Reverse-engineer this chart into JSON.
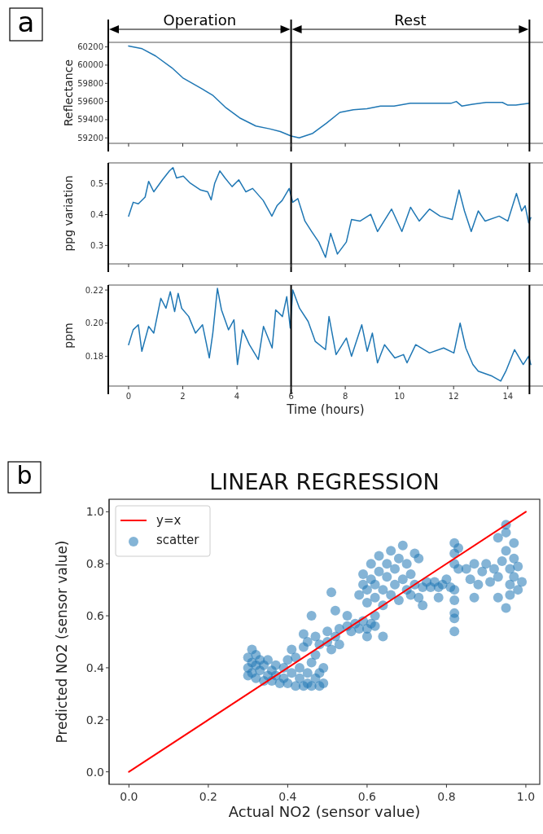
{
  "chart_data": [
    {
      "type": "line",
      "ylabel": "Reflectance",
      "annotations": [
        "a",
        "Operation",
        "Rest"
      ],
      "xlim": [
        -0.75,
        15.3
      ],
      "xticks": [
        0,
        2,
        4,
        6,
        8,
        10,
        12,
        14
      ],
      "ylim": [
        59140,
        60250
      ],
      "yticks": [
        59200,
        59400,
        59600,
        59800,
        60000,
        60200
      ],
      "tick_labels": "y",
      "ref_lines": [
        {
          "axis": "x",
          "value": 6,
          "color": "#000000"
        },
        {
          "axis": "x",
          "value": 14.8,
          "color": "#000000"
        }
      ],
      "series": [
        {
          "color": "#1f77b4",
          "x": [
            0,
            0.5,
            1,
            1.6,
            2,
            2.7,
            3.1,
            3.6,
            4.1,
            4.7,
            5.2,
            5.6,
            6,
            6.3,
            6.8,
            7.3,
            7.8,
            8.3,
            8.8,
            9.3,
            9.8,
            10.4,
            11.1,
            11.9,
            12.1,
            12.3,
            12.7,
            13.2,
            13.8,
            14,
            14.3,
            14.8
          ],
          "values": [
            60210,
            60180,
            60100,
            59970,
            59860,
            59740,
            59670,
            59530,
            59420,
            59330,
            59300,
            59270,
            59220,
            59200,
            59250,
            59360,
            59480,
            59510,
            59520,
            59550,
            59550,
            59580,
            59580,
            59580,
            59600,
            59550,
            59570,
            59590,
            59590,
            59560,
            59560,
            59580
          ]
        }
      ]
    },
    {
      "type": "line",
      "ylabel": "ppg variation",
      "xlim": [
        -0.75,
        15.3
      ],
      "xticks": [
        0,
        2,
        4,
        6,
        8,
        10,
        12,
        14
      ],
      "ylim": [
        0.24,
        0.568
      ],
      "yticks": [
        0.3,
        0.4,
        0.5
      ],
      "tick_labels": "y",
      "ref_lines": [
        {
          "axis": "x",
          "value": 6,
          "color": "#000000"
        },
        {
          "axis": "x",
          "value": 14.8,
          "color": "#000000"
        }
      ],
      "series": [
        {
          "color": "#1f77b4",
          "x": [
            0,
            0.17,
            0.36,
            0.61,
            0.74,
            0.93,
            1.25,
            1.51,
            1.64,
            1.77,
            2.02,
            2.28,
            2.66,
            2.92,
            3.05,
            3.18,
            3.37,
            3.56,
            3.82,
            4.07,
            4.33,
            4.58,
            4.97,
            5.29,
            5.48,
            5.67,
            5.93,
            6.06,
            6.25,
            6.51,
            6.76,
            7.02,
            7.27,
            7.46,
            7.71,
            8.04,
            8.23,
            8.55,
            8.94,
            9.19,
            9.71,
            10.09,
            10.41,
            10.73,
            11.11,
            11.5,
            11.95,
            12.2,
            12.4,
            12.65,
            12.91,
            13.16,
            13.68,
            14,
            14.32,
            14.51,
            14.64,
            14.77,
            14.85
          ],
          "values": [
            0.395,
            0.44,
            0.435,
            0.457,
            0.508,
            0.474,
            0.513,
            0.542,
            0.553,
            0.519,
            0.525,
            0.502,
            0.48,
            0.474,
            0.448,
            0.502,
            0.542,
            0.519,
            0.491,
            0.513,
            0.474,
            0.485,
            0.446,
            0.395,
            0.429,
            0.446,
            0.485,
            0.44,
            0.452,
            0.379,
            0.345,
            0.311,
            0.261,
            0.339,
            0.272,
            0.311,
            0.384,
            0.379,
            0.401,
            0.345,
            0.418,
            0.345,
            0.424,
            0.379,
            0.418,
            0.395,
            0.384,
            0.48,
            0.412,
            0.345,
            0.412,
            0.379,
            0.395,
            0.379,
            0.469,
            0.412,
            0.429,
            0.373,
            0.39
          ]
        }
      ]
    },
    {
      "type": "line",
      "ylabel": "ppm",
      "xlabel": "Time (hours)",
      "xlim": [
        -0.75,
        15.3
      ],
      "xticks": [
        0,
        2,
        4,
        6,
        8,
        10,
        12,
        14
      ],
      "ylim": [
        0.162,
        0.223
      ],
      "yticks": [
        0.18,
        {
          "value": 0.2,
          "label": "0.20"
        },
        0.22
      ],
      "ref_lines": [
        {
          "axis": "x",
          "value": 6,
          "color": "#000000"
        },
        {
          "axis": "x",
          "value": 14.8,
          "color": "#000000"
        }
      ],
      "series": [
        {
          "color": "#1f77b4",
          "x": [
            0,
            0.17,
            0.36,
            0.49,
            0.74,
            0.93,
            1.19,
            1.38,
            1.54,
            1.7,
            1.83,
            1.96,
            2.22,
            2.47,
            2.73,
            2.98,
            3.11,
            3.28,
            3.43,
            3.69,
            3.89,
            4.02,
            4.21,
            4.46,
            4.79,
            4.98,
            5.3,
            5.43,
            5.68,
            5.84,
            5.97,
            6.06,
            6.31,
            6.63,
            6.89,
            7.27,
            7.4,
            7.66,
            8.04,
            8.23,
            8.61,
            8.81,
            9,
            9.19,
            9.45,
            9.83,
            10.15,
            10.28,
            10.6,
            11.11,
            11.63,
            12.01,
            12.24,
            12.45,
            12.71,
            12.91,
            13.42,
            13.74,
            13.93,
            14.25,
            14.57,
            14.77,
            14.85
          ],
          "values": [
            0.187,
            0.196,
            0.199,
            0.183,
            0.198,
            0.194,
            0.215,
            0.209,
            0.219,
            0.207,
            0.218,
            0.209,
            0.204,
            0.194,
            0.199,
            0.179,
            0.194,
            0.221,
            0.208,
            0.196,
            0.202,
            0.175,
            0.196,
            0.187,
            0.178,
            0.198,
            0.185,
            0.208,
            0.204,
            0.216,
            0.197,
            0.22,
            0.209,
            0.201,
            0.189,
            0.184,
            0.204,
            0.181,
            0.191,
            0.18,
            0.199,
            0.183,
            0.194,
            0.176,
            0.187,
            0.179,
            0.181,
            0.176,
            0.187,
            0.182,
            0.185,
            0.182,
            0.2,
            0.185,
            0.175,
            0.171,
            0.168,
            0.165,
            0.171,
            0.184,
            0.175,
            0.18,
            0.175
          ]
        }
      ]
    },
    {
      "type": "scatter",
      "title": "LINEAR REGRESSION",
      "xlabel": "Actual NO2 (sensor value)",
      "ylabel": "Predicted NO2 (sensor value)",
      "annotations": [
        "b"
      ],
      "legend": "top left",
      "xlim": [
        -0.05,
        1.035
      ],
      "xticks": [
        {
          "value": 0,
          "label": "0.0"
        },
        0.2,
        0.4,
        0.6,
        0.8,
        {
          "value": 1,
          "label": "1.0"
        }
      ],
      "ylim": [
        -0.048,
        1.048
      ],
      "yticks": [
        {
          "value": 0,
          "label": "0.0"
        },
        0.2,
        0.4,
        0.6,
        0.8,
        {
          "value": 1,
          "label": "1.0"
        }
      ],
      "series": [
        {
          "name": "y=x",
          "type": "line",
          "color": "#ff0000",
          "x": [
            0,
            1
          ],
          "values": [
            0,
            1
          ]
        },
        {
          "name": "scatter",
          "marker": "circle",
          "color": "#1f77b4",
          "x": [
            0.3,
            0.3,
            0.3,
            0.31,
            0.31,
            0.32,
            0.32,
            0.32,
            0.33,
            0.33,
            0.34,
            0.34,
            0.35,
            0.35,
            0.36,
            0.36,
            0.37,
            0.37,
            0.38,
            0.39,
            0.39,
            0.4,
            0.4,
            0.41,
            0.41,
            0.42,
            0.42,
            0.43,
            0.43,
            0.44,
            0.44,
            0.45,
            0.45,
            0.46,
            0.46,
            0.47,
            0.47,
            0.48,
            0.48,
            0.49,
            0.49,
            0.45,
            0.47,
            0.48,
            0.5,
            0.5,
            0.51,
            0.52,
            0.53,
            0.53,
            0.55,
            0.56,
            0.57,
            0.58,
            0.59,
            0.6,
            0.61,
            0.62,
            0.62,
            0.58,
            0.59,
            0.59,
            0.6,
            0.6,
            0.61,
            0.61,
            0.62,
            0.62,
            0.63,
            0.63,
            0.64,
            0.64,
            0.65,
            0.65,
            0.66,
            0.66,
            0.67,
            0.67,
            0.68,
            0.68,
            0.69,
            0.69,
            0.7,
            0.7,
            0.71,
            0.71,
            0.72,
            0.72,
            0.73,
            0.74,
            0.75,
            0.76,
            0.77,
            0.78,
            0.79,
            0.8,
            0.81,
            0.82,
            0.82,
            0.82,
            0.83,
            0.83,
            0.82,
            0.82,
            0.85,
            0.86,
            0.87,
            0.88,
            0.89,
            0.9,
            0.91,
            0.92,
            0.93,
            0.94,
            0.95,
            0.95,
            0.96,
            0.96,
            0.96,
            0.97,
            0.97,
            0.97,
            0.98,
            0.98,
            0.99,
            0.51,
            0.52,
            0.46,
            0.55,
            0.6,
            0.64,
            0.82,
            0.82,
            0.82,
            0.78,
            0.87,
            0.93,
            0.95,
            0.93,
            0.95,
            0.44,
            0.31,
            0.74,
            0.73
          ],
          "values": [
            0.44,
            0.4,
            0.37,
            0.42,
            0.38,
            0.45,
            0.41,
            0.36,
            0.43,
            0.39,
            0.35,
            0.41,
            0.37,
            0.43,
            0.39,
            0.35,
            0.41,
            0.37,
            0.34,
            0.4,
            0.36,
            0.43,
            0.34,
            0.47,
            0.38,
            0.33,
            0.44,
            0.36,
            0.4,
            0.33,
            0.48,
            0.38,
            0.34,
            0.42,
            0.33,
            0.36,
            0.45,
            0.33,
            0.38,
            0.34,
            0.4,
            0.5,
            0.52,
            0.49,
            0.54,
            0.5,
            0.47,
            0.52,
            0.49,
            0.55,
            0.56,
            0.54,
            0.57,
            0.55,
            0.58,
            0.55,
            0.57,
            0.6,
            0.56,
            0.68,
            0.72,
            0.76,
            0.65,
            0.7,
            0.74,
            0.8,
            0.67,
            0.72,
            0.77,
            0.83,
            0.64,
            0.7,
            0.75,
            0.8,
            0.68,
            0.85,
            0.72,
            0.78,
            0.66,
            0.82,
            0.74,
            0.87,
            0.7,
            0.8,
            0.68,
            0.76,
            0.72,
            0.84,
            0.67,
            0.71,
            0.73,
            0.71,
            0.73,
            0.71,
            0.72,
            0.74,
            0.71,
            0.88,
            0.84,
            0.8,
            0.86,
            0.78,
            0.7,
            0.66,
            0.78,
            0.74,
            0.8,
            0.72,
            0.77,
            0.8,
            0.73,
            0.78,
            0.75,
            0.81,
            0.92,
            0.85,
            0.78,
            0.72,
            0.68,
            0.88,
            0.82,
            0.75,
            0.7,
            0.79,
            0.73,
            0.69,
            0.62,
            0.6,
            0.6,
            0.52,
            0.52,
            0.54,
            0.59,
            0.61,
            0.67,
            0.67,
            0.67,
            0.63,
            0.9,
            0.95,
            0.53,
            0.47,
            0.64,
            0.82
          ]
        }
      ]
    }
  ]
}
